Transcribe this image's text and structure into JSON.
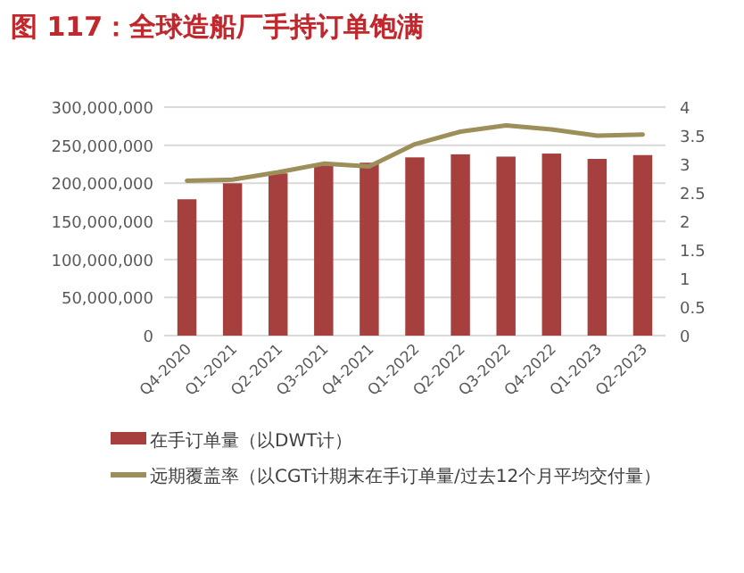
{
  "chart_data": {
    "type": "bar",
    "title": "图 117：全球造船厂手持订单饱满",
    "categories": [
      "Q4-2020",
      "Q1-2021",
      "Q2-2021",
      "Q3-2021",
      "Q4-2021",
      "Q1-2022",
      "Q2-2022",
      "Q3-2022",
      "Q4-2022",
      "Q1-2023",
      "Q2-2023"
    ],
    "series": [
      {
        "name": "在手订单量（以DWT计）",
        "color": "#a5403f",
        "values": [
          179000000,
          200000000,
          213000000,
          224000000,
          227000000,
          234000000,
          238000000,
          235000000,
          239000000,
          232000000,
          237000000
        ]
      },
      {
        "name": "远期覆盖率（以CGT计期末在手订单量/过去12个月平均交付量）",
        "type": "line",
        "axis": "y2",
        "color": "#9c8f5a",
        "values": [
          2.71,
          2.73,
          2.86,
          3.01,
          2.96,
          3.35,
          3.57,
          3.68,
          3.61,
          3.5,
          3.52
        ]
      }
    ],
    "ylim": [
      0,
      300000000
    ],
    "yticks": [
      {
        "value": 0,
        "label": "0"
      },
      {
        "value": 50000000,
        "label": "50,000,000"
      },
      {
        "value": 100000000,
        "label": "100,000,000"
      },
      {
        "value": 150000000,
        "label": "150,000,000"
      },
      {
        "value": 200000000,
        "label": "200,000,000"
      },
      {
        "value": 250000000,
        "label": "250,000,000"
      },
      {
        "value": 300000000,
        "label": "300,000,000"
      }
    ],
    "y2lim": [
      0,
      4
    ],
    "y2ticks": [
      0,
      0.5,
      1,
      1.5,
      2,
      2.5,
      3,
      3.5,
      4
    ],
    "grid": "y",
    "legend": "bottom"
  }
}
